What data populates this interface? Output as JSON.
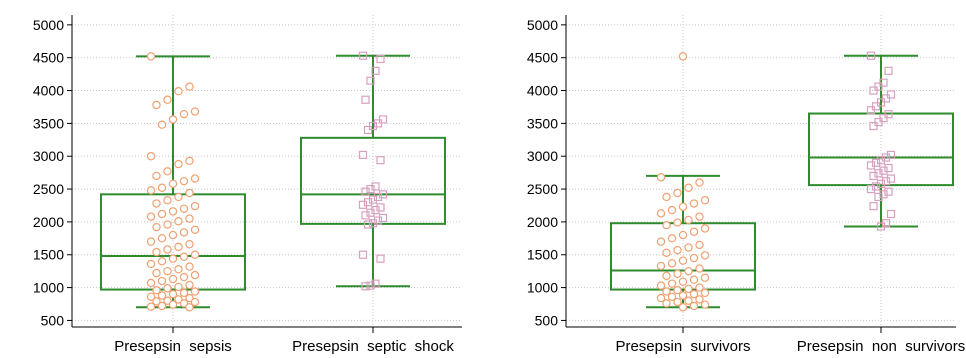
{
  "colors": {
    "box": "#2e8b2e",
    "axis": "#000000",
    "grid": "#c8c8c8",
    "circle_marker": "#f0a070",
    "square_marker": "#d8a0c0"
  },
  "chart_data": [
    {
      "type": "box",
      "ylim": [
        400,
        5150
      ],
      "yticks": [
        500,
        1000,
        1500,
        2000,
        2500,
        3000,
        3500,
        4000,
        4500,
        5000
      ],
      "grid": true,
      "categories": [
        "Presepsin  sepsis",
        "Presepsin  septic  shock"
      ],
      "boxes": [
        {
          "name": "Presepsin  sepsis",
          "min": 700,
          "q1": 970,
          "median": 1480,
          "q3": 2420,
          "max": 4520,
          "marker": "circle",
          "points": [
            4520,
            4060,
            3990,
            3860,
            3780,
            3680,
            3640,
            3560,
            3480,
            3000,
            2930,
            2880,
            2770,
            2700,
            2660,
            2620,
            2580,
            2520,
            2480,
            2440,
            2380,
            2330,
            2280,
            2240,
            2200,
            2160,
            2120,
            2080,
            2050,
            2010,
            1960,
            1920,
            1880,
            1840,
            1800,
            1750,
            1700,
            1660,
            1620,
            1580,
            1540,
            1500,
            1470,
            1440,
            1400,
            1360,
            1320,
            1280,
            1250,
            1220,
            1190,
            1160,
            1130,
            1100,
            1070,
            1040,
            1010,
            990,
            960,
            940,
            920,
            900,
            880,
            860,
            840,
            820,
            800,
            790,
            780,
            760,
            740,
            720,
            710,
            700
          ]
        },
        {
          "name": "Presepsin  septic  shock",
          "min": 1020,
          "q1": 1970,
          "median": 2420,
          "q3": 3280,
          "max": 4530,
          "marker": "square",
          "points": [
            4530,
            4480,
            4300,
            4150,
            3860,
            3560,
            3500,
            3460,
            3400,
            3020,
            2940,
            2540,
            2500,
            2460,
            2420,
            2380,
            2340,
            2300,
            2260,
            2220,
            2180,
            2140,
            2100,
            2060,
            2020,
            1980,
            1960,
            1500,
            1440,
            1060,
            1030,
            1020
          ]
        }
      ]
    },
    {
      "type": "box",
      "ylim": [
        400,
        5150
      ],
      "yticks": [
        500,
        1000,
        1500,
        2000,
        2500,
        3000,
        3500,
        4000,
        4500,
        5000
      ],
      "grid": true,
      "categories": [
        "Presepsin  survivors",
        "Presepsin  non  survivors"
      ],
      "boxes": [
        {
          "name": "Presepsin  survivors",
          "min": 700,
          "q1": 970,
          "median": 1260,
          "q3": 1980,
          "max": 2700,
          "marker": "circle",
          "outliers": [
            4520
          ],
          "points": [
            2680,
            2600,
            2520,
            2440,
            2380,
            2330,
            2280,
            2230,
            2180,
            2130,
            2080,
            2030,
            1990,
            1950,
            1900,
            1850,
            1800,
            1750,
            1700,
            1650,
            1610,
            1570,
            1530,
            1490,
            1450,
            1410,
            1370,
            1330,
            1290,
            1250,
            1210,
            1180,
            1150,
            1120,
            1090,
            1060,
            1030,
            1000,
            980,
            960,
            940,
            920,
            900,
            880,
            860,
            840,
            820,
            800,
            780,
            760,
            740,
            720,
            700
          ]
        },
        {
          "name": "Presepsin  non  survivors",
          "min": 1930,
          "q1": 2560,
          "median": 2980,
          "q3": 3650,
          "max": 4530,
          "marker": "square",
          "points": [
            4530,
            4300,
            4120,
            4060,
            4000,
            3940,
            3880,
            3820,
            3760,
            3700,
            3640,
            3580,
            3520,
            3460,
            3020,
            2980,
            2940,
            2900,
            2860,
            2820,
            2780,
            2740,
            2700,
            2660,
            2620,
            2580,
            2540,
            2500,
            2460,
            2420,
            2380,
            2240,
            2120,
            1980,
            1930
          ]
        }
      ]
    }
  ]
}
